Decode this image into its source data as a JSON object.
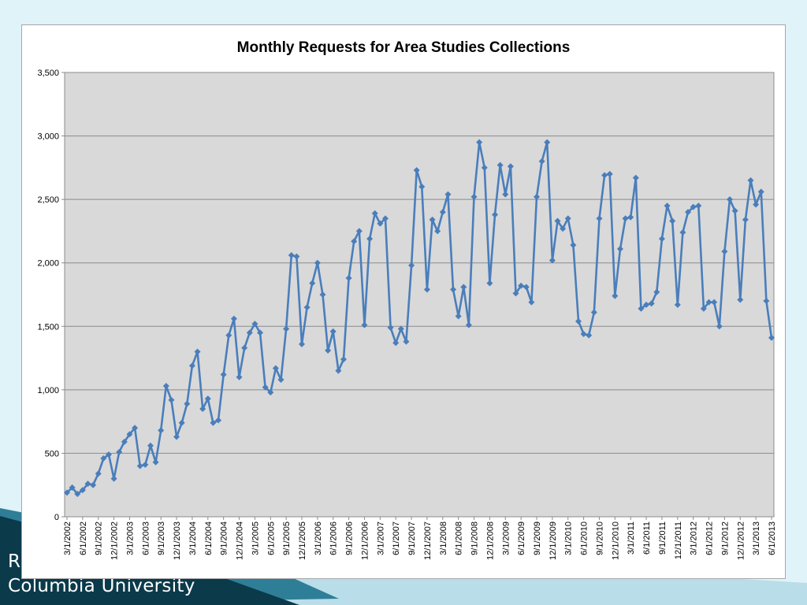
{
  "slide": {
    "footer_line1": "R",
    "footer_line2": "Columbia University",
    "colors": {
      "background": "#dff3f9",
      "band_dark": "#0b3a4a",
      "band_mid": "#2f7e97"
    }
  },
  "chart_data": {
    "type": "line",
    "title": "Monthly Requests for Area Studies Collections",
    "xlabel": "",
    "ylabel": "",
    "ylim": [
      0,
      3500
    ],
    "yticks": [
      0,
      500,
      1000,
      1500,
      2000,
      2500,
      3000,
      3500
    ],
    "ytick_labels": [
      "0",
      "500",
      "1,000",
      "1,500",
      "2,000",
      "2,500",
      "3,000",
      "3,500"
    ],
    "xtick_labels": [
      "3/1/2002",
      "6/1/2002",
      "9/1/2002",
      "12/1/2002",
      "3/1/2003",
      "6/1/2003",
      "9/1/2003",
      "12/1/2003",
      "3/1/2004",
      "6/1/2004",
      "9/1/2004",
      "12/1/2004",
      "3/1/2005",
      "6/1/2005",
      "9/1/2005",
      "12/1/2005",
      "3/1/2006",
      "6/1/2006",
      "9/1/2006",
      "12/1/2006",
      "3/1/2007",
      "6/1/2007",
      "9/1/2007",
      "12/1/2007",
      "3/1/2008",
      "6/1/2008",
      "9/1/2008",
      "12/1/2008",
      "3/1/2009",
      "6/1/2009",
      "9/1/2009",
      "12/1/2009",
      "3/1/2010",
      "6/1/2010",
      "9/1/2010",
      "12/1/2010",
      "3/1/2011",
      "6/1/2011",
      "9/1/2011",
      "12/1/2011",
      "3/1/2012",
      "6/1/2012",
      "9/1/2012",
      "12/1/2012",
      "3/1/2013",
      "6/1/2013"
    ],
    "x_start": "3/1/2002",
    "x_end": "6/1/2013",
    "grid": true,
    "legend": "none",
    "colors": {
      "line": "#4a7ebb",
      "marker": "#4a7ebb",
      "plot_bg": "#d9d9d9",
      "grid": "#8c8c8c"
    },
    "series": [
      {
        "values": [
          190,
          230,
          180,
          210,
          260,
          250,
          340,
          460,
          490,
          300,
          510,
          590,
          650,
          700,
          400,
          410,
          560,
          430,
          680,
          1030,
          920,
          630,
          740,
          890,
          1190,
          1300,
          850,
          930,
          740,
          760,
          1120,
          1430,
          1560,
          1100,
          1330,
          1450,
          1520,
          1450,
          1020,
          980,
          1170,
          1080,
          1480,
          2060,
          2050,
          1360,
          1650,
          1840,
          2000,
          1750,
          1310,
          1460,
          1150,
          1240,
          1880,
          2170,
          2250,
          1510,
          2190,
          2390,
          2310,
          2350,
          1490,
          1370,
          1480,
          1380,
          1980,
          2730,
          2600,
          1790,
          2340,
          2250,
          2400,
          2540,
          1790,
          1580,
          1810,
          1510,
          2520,
          2950,
          2750,
          1840,
          2380,
          2770,
          2540,
          2760,
          1760,
          1820,
          1810,
          1690,
          2520,
          2800,
          2950,
          2020,
          2330,
          2270,
          2350,
          2140,
          1540,
          1440,
          1430,
          1610,
          2350,
          2690,
          2700,
          1740,
          2110,
          2350,
          2360,
          2670,
          1640,
          1670,
          1680,
          1770,
          2190,
          2450,
          2330,
          1670,
          2240,
          2400,
          2440,
          2450,
          1640,
          1690,
          1690,
          1500,
          2090,
          2500,
          2410,
          1710,
          2340,
          2650,
          2460,
          2560,
          1700,
          1410
        ]
      }
    ]
  }
}
